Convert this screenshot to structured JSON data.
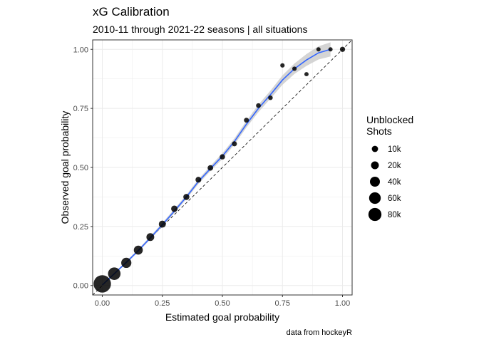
{
  "chart_data": {
    "type": "scatter",
    "title": "xG Calibration",
    "subtitle": "2010-11 through 2021-22 seasons | all situations",
    "xlabel": "Estimated goal probability",
    "ylabel": "Observed goal probability",
    "caption": "data from hockeyR",
    "xlim": [
      -0.04,
      1.04
    ],
    "ylim": [
      -0.04,
      1.04
    ],
    "x_ticks": [
      0,
      0.25,
      0.5,
      0.75,
      1
    ],
    "x_tick_labels": [
      "0.00",
      "0.25",
      "0.50",
      "0.75",
      "1.00"
    ],
    "y_ticks": [
      0,
      0.25,
      0.5,
      0.75,
      1
    ],
    "y_tick_labels": [
      "0.00",
      "0.25",
      "0.50",
      "0.75",
      "1.00"
    ],
    "grid": true,
    "reference_line": "y = x (dashed)",
    "legend": {
      "title_lines": [
        "Unblocked",
        "Shots"
      ],
      "placement": "right",
      "entries": [
        {
          "label": "10k",
          "value": 10000
        },
        {
          "label": "20k",
          "value": 20000
        },
        {
          "label": "40k",
          "value": 40000
        },
        {
          "label": "60k",
          "value": 60000
        },
        {
          "label": "80k",
          "value": 80000
        }
      ]
    },
    "points": [
      {
        "x": 0.0,
        "y": 0.007,
        "shots": 160000
      },
      {
        "x": 0.05,
        "y": 0.05,
        "shots": 72000
      },
      {
        "x": 0.1,
        "y": 0.096,
        "shots": 42000
      },
      {
        "x": 0.15,
        "y": 0.15,
        "shots": 30000
      },
      {
        "x": 0.2,
        "y": 0.205,
        "shots": 20000
      },
      {
        "x": 0.25,
        "y": 0.26,
        "shots": 15000
      },
      {
        "x": 0.3,
        "y": 0.325,
        "shots": 11000
      },
      {
        "x": 0.35,
        "y": 0.375,
        "shots": 9000
      },
      {
        "x": 0.4,
        "y": 0.448,
        "shots": 7500
      },
      {
        "x": 0.45,
        "y": 0.498,
        "shots": 6500
      },
      {
        "x": 0.5,
        "y": 0.545,
        "shots": 5500
      },
      {
        "x": 0.55,
        "y": 0.6,
        "shots": 4500
      },
      {
        "x": 0.6,
        "y": 0.7,
        "shots": 4000
      },
      {
        "x": 0.65,
        "y": 0.762,
        "shots": 3500
      },
      {
        "x": 0.7,
        "y": 0.795,
        "shots": 3000
      },
      {
        "x": 0.75,
        "y": 0.932,
        "shots": 2500
      },
      {
        "x": 0.8,
        "y": 0.918,
        "shots": 2500
      },
      {
        "x": 0.85,
        "y": 0.895,
        "shots": 2000
      },
      {
        "x": 0.9,
        "y": 1.0,
        "shots": 2000
      },
      {
        "x": 0.95,
        "y": 1.0,
        "shots": 2000
      },
      {
        "x": 1.0,
        "y": 1.0,
        "shots": 5000
      }
    ],
    "smooth_line": {
      "x": [
        0.0,
        0.05,
        0.1,
        0.15,
        0.2,
        0.25,
        0.3,
        0.35,
        0.4,
        0.45,
        0.5,
        0.55,
        0.6,
        0.65,
        0.7,
        0.75,
        0.8,
        0.85,
        0.9,
        0.95
      ],
      "y": [
        0.002,
        0.05,
        0.098,
        0.148,
        0.202,
        0.257,
        0.315,
        0.375,
        0.44,
        0.495,
        0.548,
        0.61,
        0.683,
        0.75,
        0.808,
        0.87,
        0.918,
        0.955,
        0.985,
        1.0
      ],
      "se": [
        0.003,
        0.004,
        0.005,
        0.006,
        0.007,
        0.008,
        0.009,
        0.009,
        0.01,
        0.011,
        0.012,
        0.013,
        0.014,
        0.016,
        0.017,
        0.02,
        0.022,
        0.025,
        0.028,
        0.03
      ],
      "color": "#3366ff",
      "band_color": "#cccccc"
    },
    "colors": {
      "point": "#000000",
      "reference_line": "#000000",
      "panel_background": "#ffffff",
      "panel_border": "#333333",
      "grid": "#ebebeb"
    }
  }
}
